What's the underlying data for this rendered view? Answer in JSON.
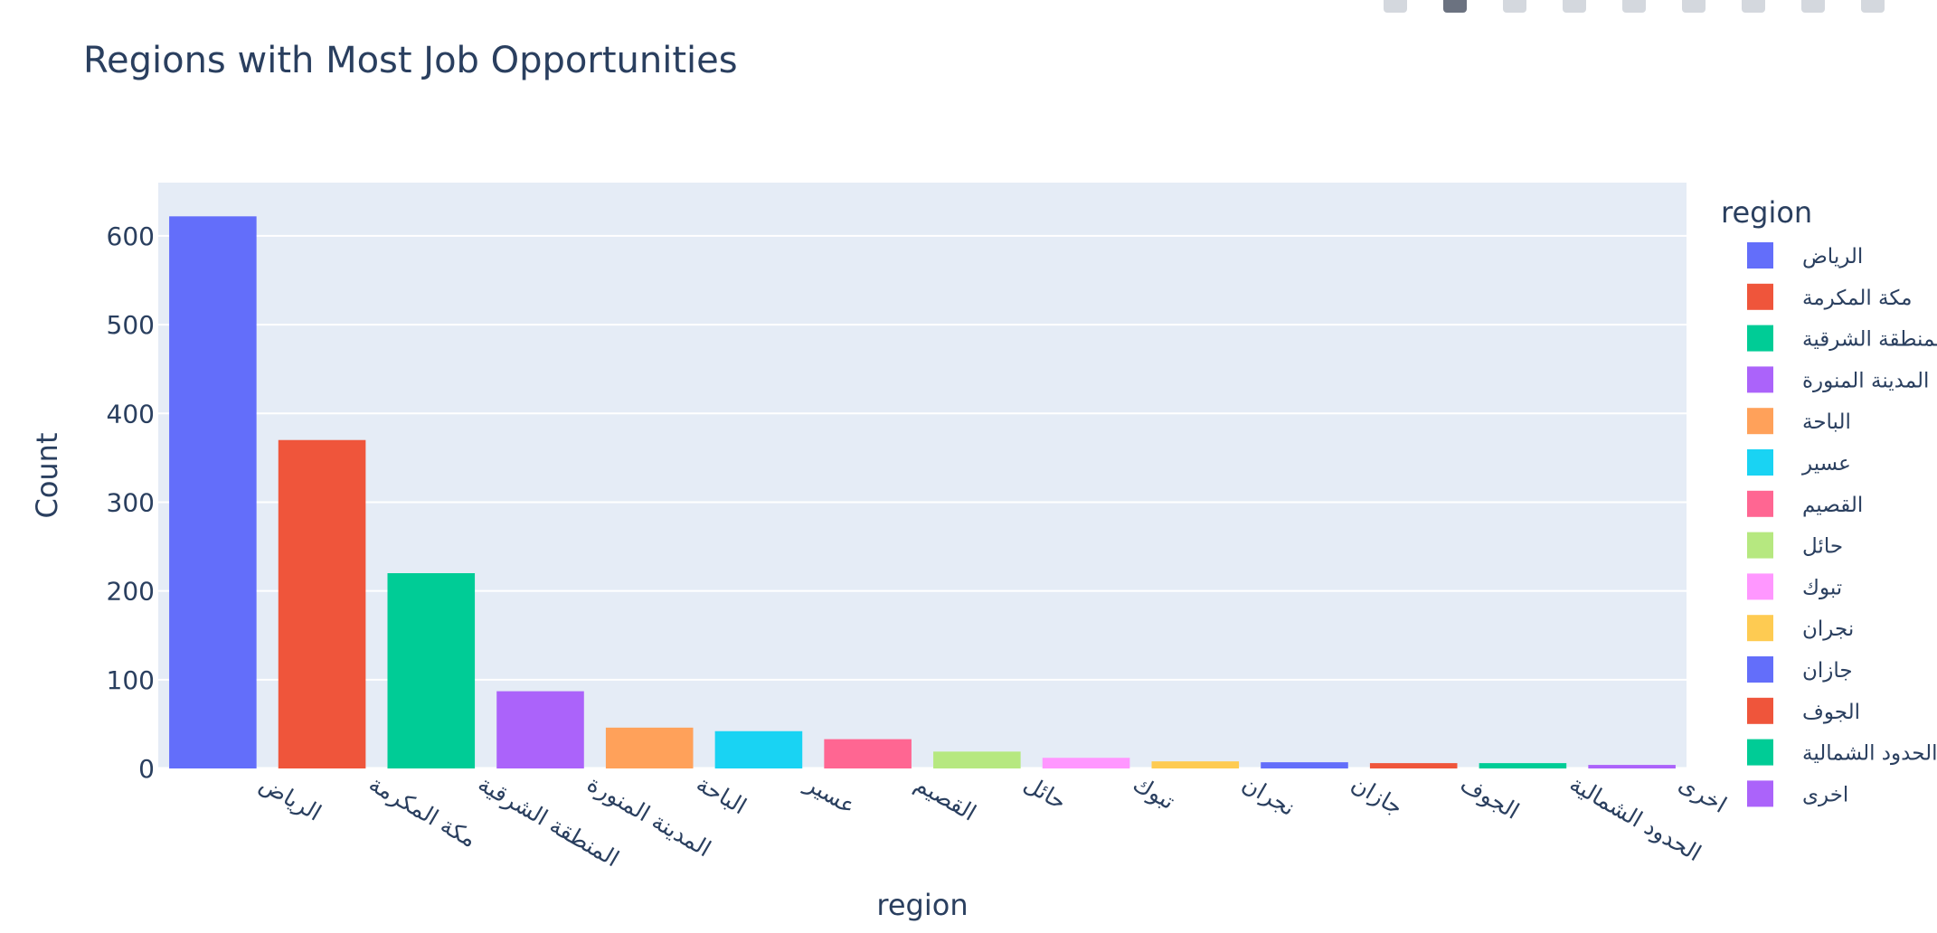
{
  "modebar": {
    "buttons": [
      "camera-icon",
      "zoom-icon",
      "pan-icon",
      "box-select-icon",
      "lasso-icon",
      "zoom-in-icon",
      "zoom-out-icon",
      "autoscale-icon",
      "reset-axes-icon"
    ]
  },
  "chart_data": {
    "type": "bar",
    "title": "Regions with Most Job Opportunities",
    "xlabel": "region",
    "ylabel": "Count",
    "ylim": [
      0,
      660
    ],
    "yticks": [
      0,
      100,
      200,
      300,
      400,
      500,
      600
    ],
    "grid": true,
    "legend_title": "region",
    "legend_position": "right",
    "categories": [
      "الرياض",
      "مكة المكرمة",
      "المنطقة الشرقية",
      "المدينة المنورة",
      "الباحة",
      "عسير",
      "القصيم",
      "حائل",
      "تبوك",
      "نجران",
      "جازان",
      "الجوف",
      "الحدود الشمالية",
      "اخرى"
    ],
    "values": [
      622,
      370,
      220,
      87,
      46,
      42,
      33,
      19,
      12,
      8,
      7,
      6,
      6,
      4
    ],
    "colors": [
      "#636efa",
      "#EF553B",
      "#00cc96",
      "#ab63fa",
      "#FFA15A",
      "#19d3f3",
      "#FF6692",
      "#B6E880",
      "#FF97FF",
      "#FECB52",
      "#636efa",
      "#EF553B",
      "#00cc96",
      "#ab63fa"
    ],
    "plot_bg": "#e5ecf6"
  }
}
